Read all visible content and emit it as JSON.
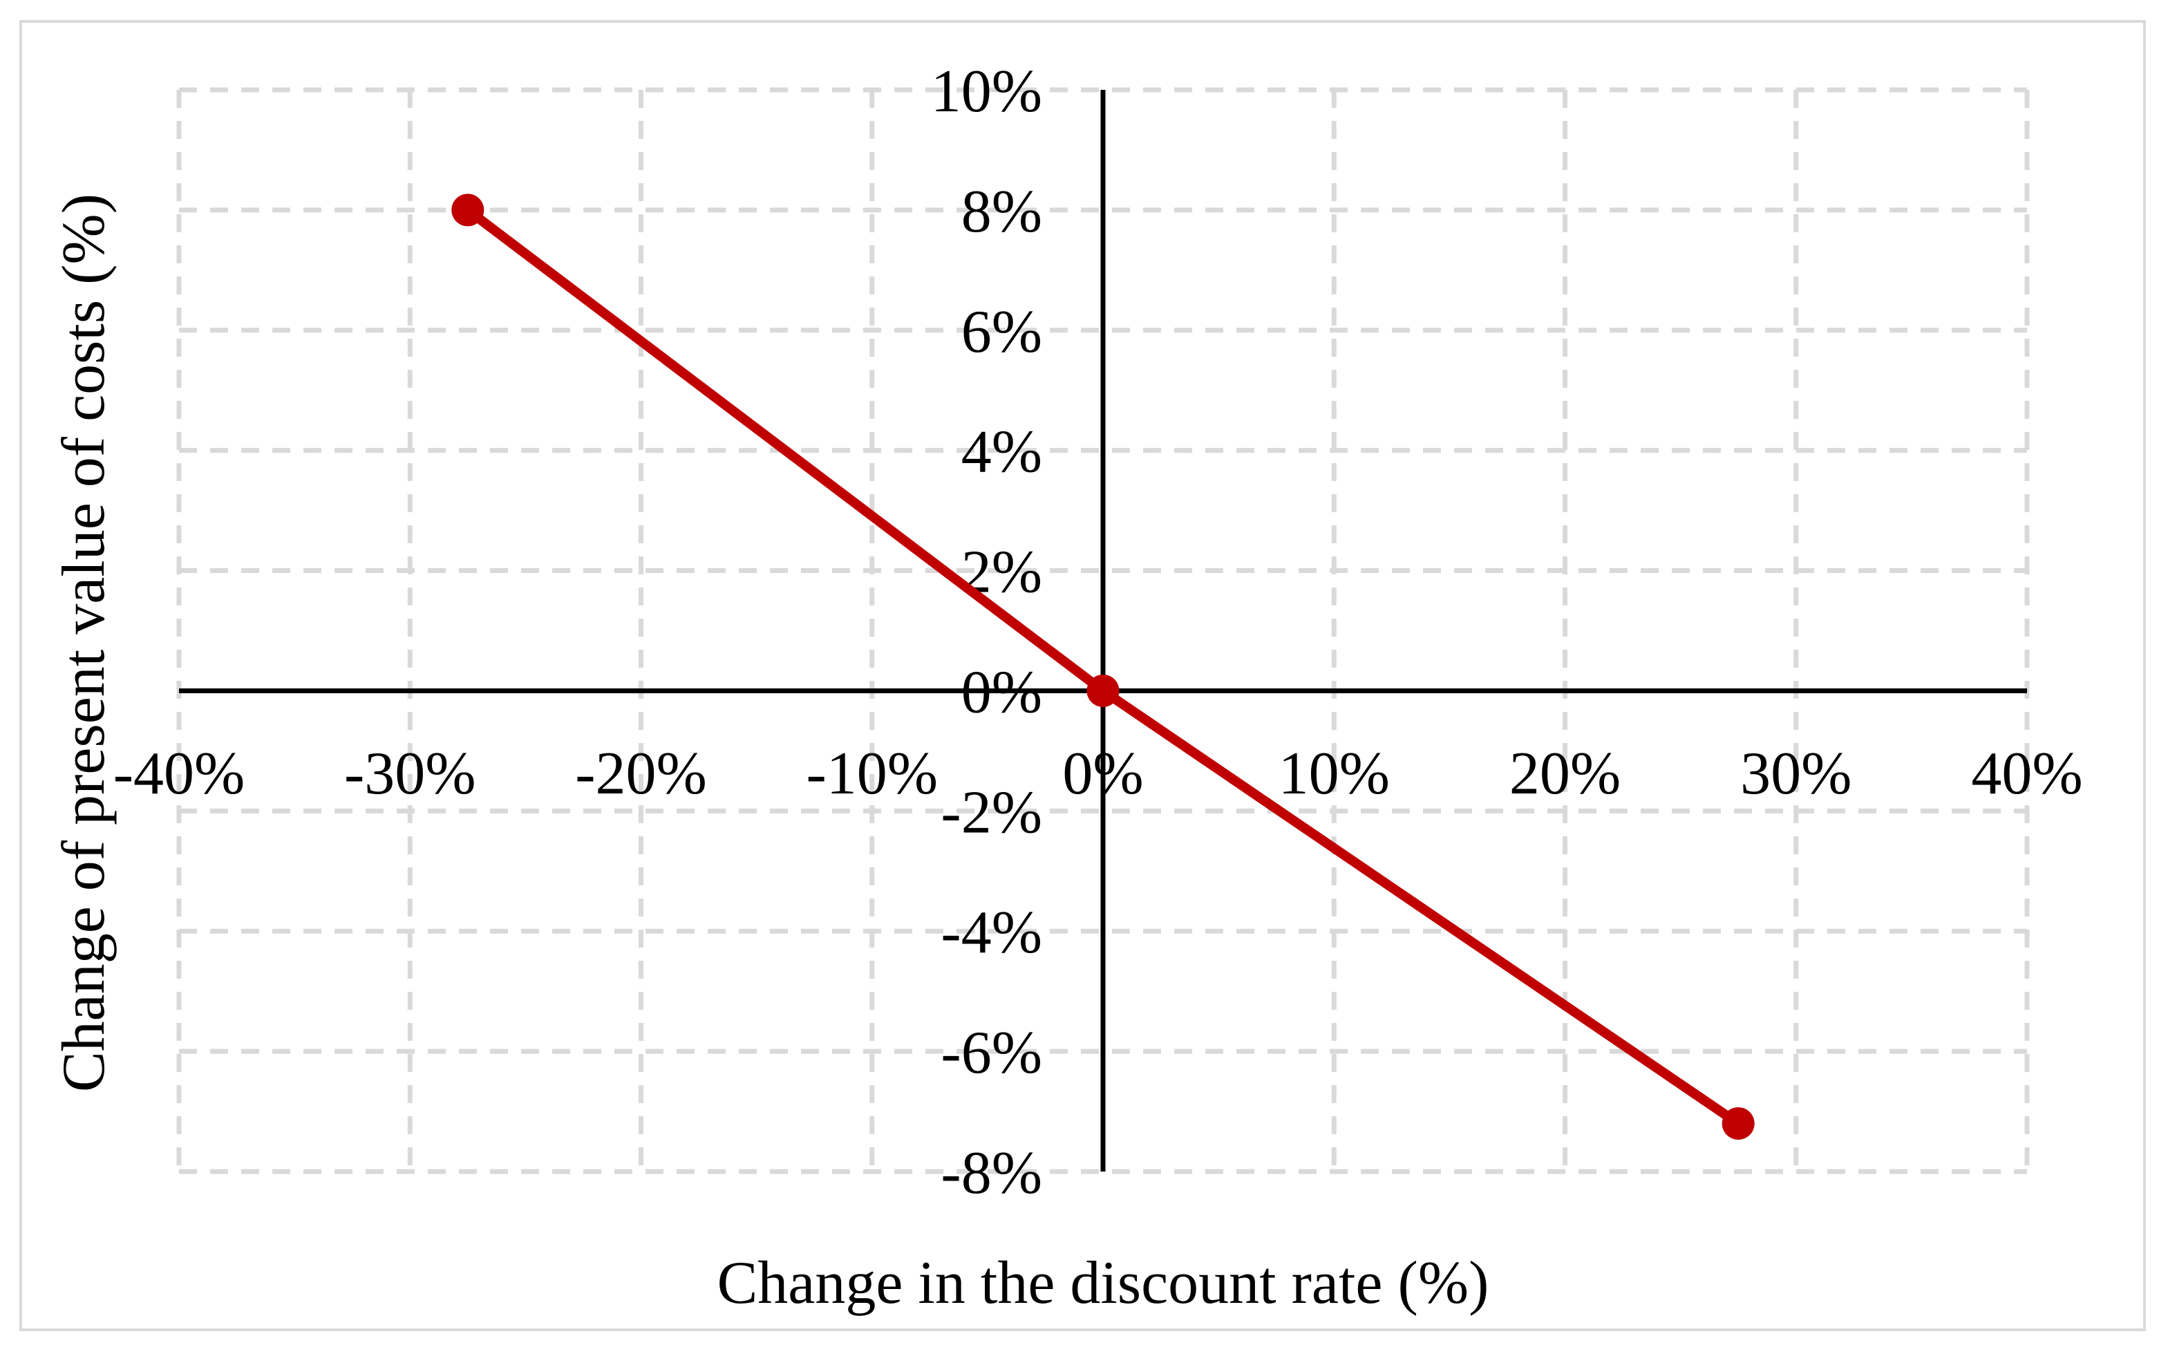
{
  "chart_data": {
    "type": "line",
    "title": "",
    "xlabel": "Change in the discount rate (%)",
    "ylabel": "Change of present value of costs (%)",
    "xlim": [
      -40,
      40
    ],
    "ylim": [
      -8,
      10
    ],
    "grid": "dashed-both-directions",
    "legend": "none",
    "x_ticks": {
      "values": [
        -40,
        -30,
        -20,
        -10,
        0,
        10,
        20,
        30,
        40
      ],
      "labels": [
        "-40%",
        "-30%",
        "-20%",
        "-10%",
        "0%",
        "10%",
        "20%",
        "30%",
        "40%"
      ]
    },
    "y_ticks": {
      "values": [
        10,
        8,
        6,
        4,
        2,
        0,
        -2,
        -4,
        -6,
        -8
      ],
      "labels": [
        "10%",
        "8%",
        "6%",
        "4%",
        "2%",
        "0%",
        "-2%",
        "-4%",
        "-6%",
        "-8%"
      ]
    },
    "series": [
      {
        "marker": "circle",
        "color": "#C00000",
        "points": [
          {
            "x": -27.5,
            "y": 8.0
          },
          {
            "x": 0,
            "y": 0.0
          },
          {
            "x": 27.5,
            "y": -7.2
          }
        ]
      }
    ]
  },
  "colors": {
    "background": "#FFFFFF",
    "border": "#D9D9D9",
    "gridline": "#D9D9D9",
    "axis": "#000000",
    "text": "#000000",
    "series": "#C00000"
  }
}
